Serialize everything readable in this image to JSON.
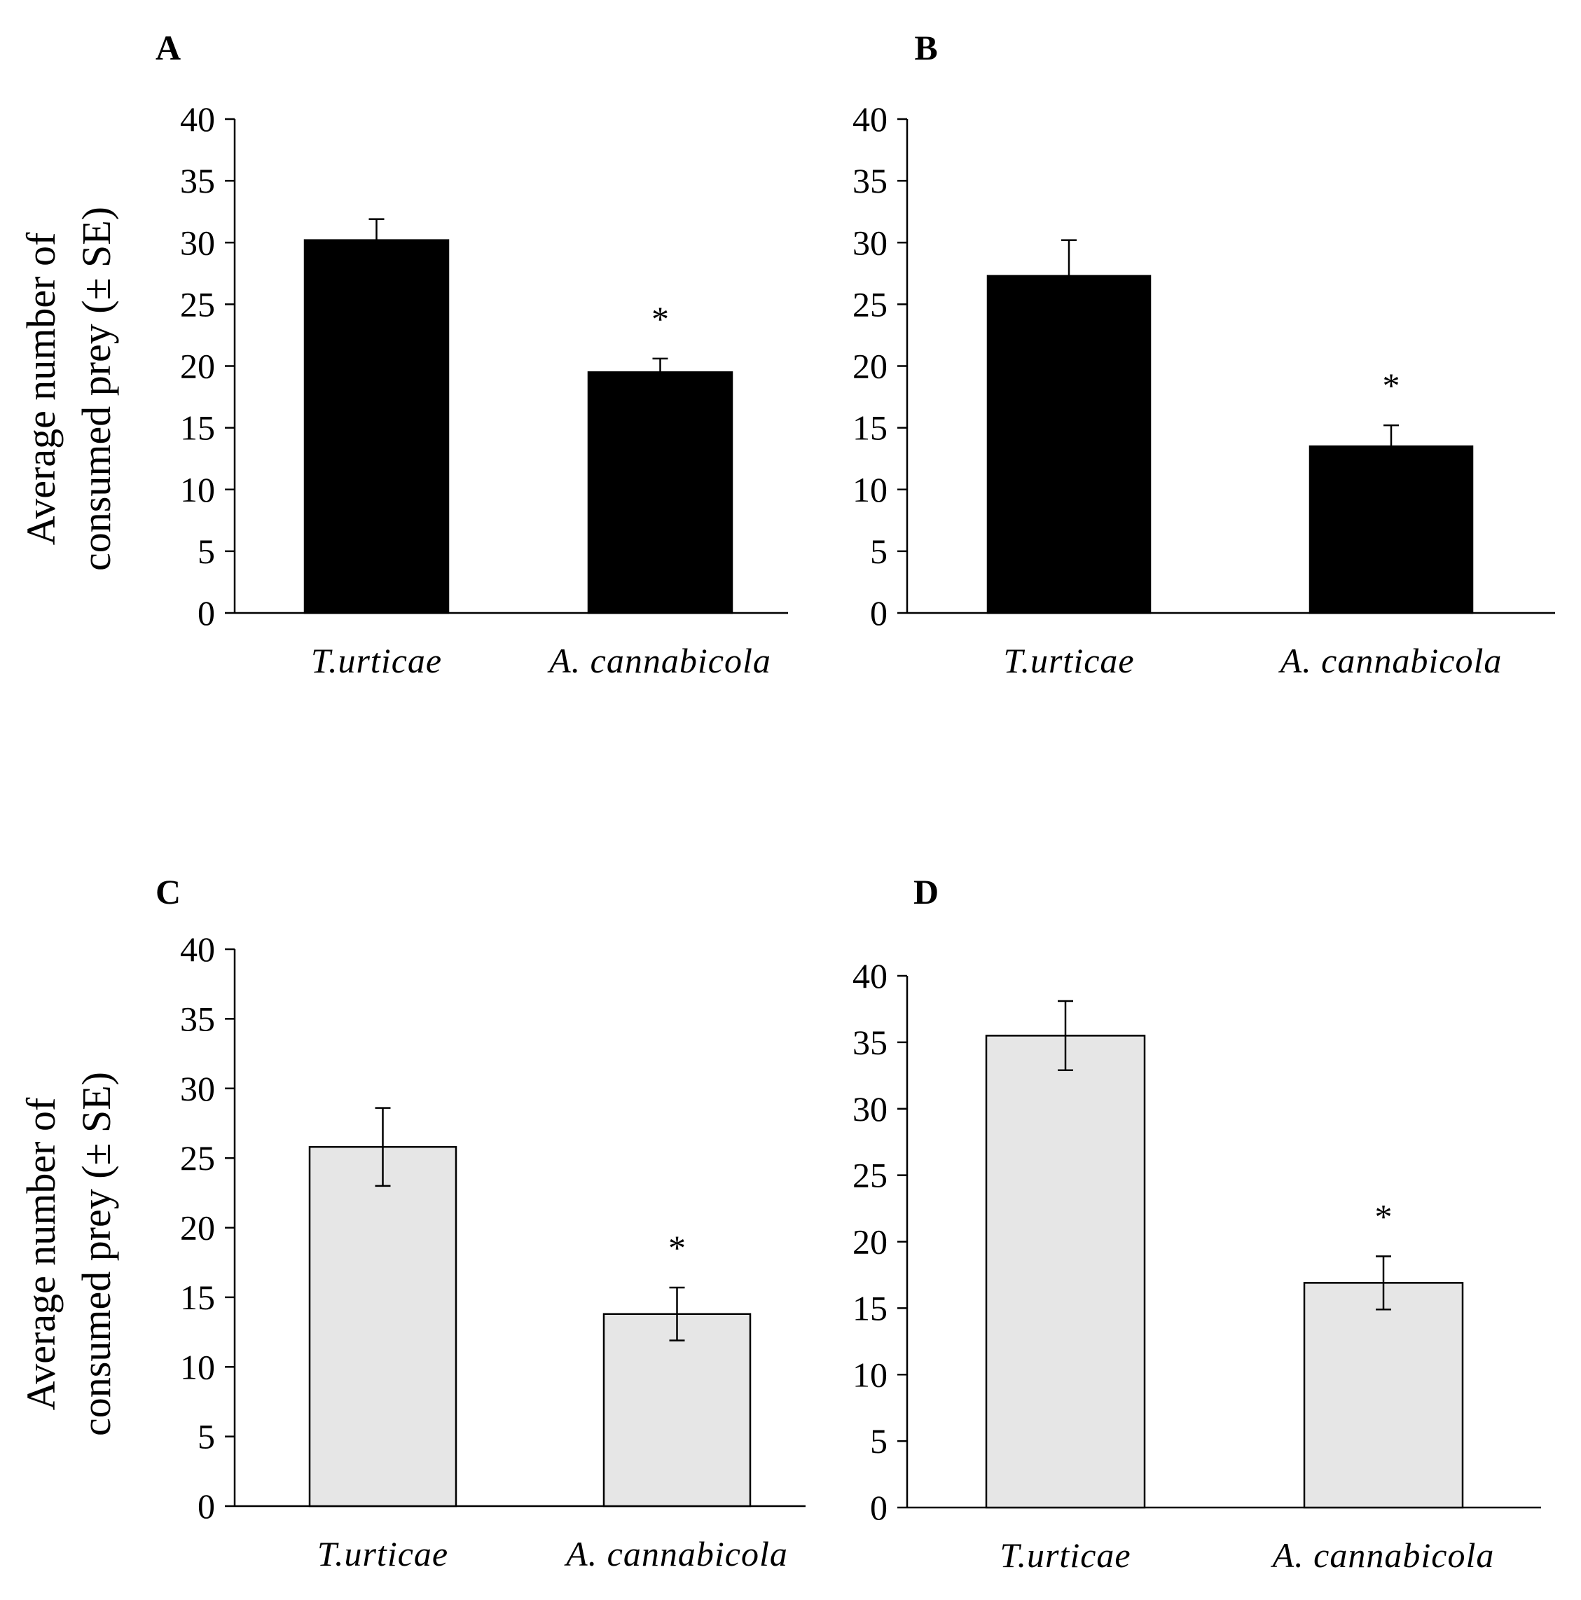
{
  "figure": {
    "y_axis_label_line1": "Average number of",
    "y_axis_label_line2": "consumed prey (± SE)"
  },
  "colors": {
    "dark_bar": "#000000",
    "light_bar": "#e6e6e6",
    "bar_edge": "#000000",
    "axis": "#000000"
  },
  "chart_data": [
    {
      "panel": "A",
      "type": "bar",
      "categories": [
        "T.urticae",
        "A. cannabicola"
      ],
      "values": [
        30.2,
        19.5
      ],
      "errors": [
        1.7,
        1.1
      ],
      "significance": [
        "",
        "*"
      ],
      "ylim": [
        0,
        40
      ],
      "yticks": [
        0,
        5,
        10,
        15,
        20,
        25,
        30,
        35,
        40
      ],
      "bar_color": "dark",
      "ylabel": "Average number of consumed prey (± SE)"
    },
    {
      "panel": "B",
      "type": "bar",
      "categories": [
        "T.urticae",
        "A. cannabicola"
      ],
      "values": [
        27.3,
        13.5
      ],
      "errors": [
        2.9,
        1.7
      ],
      "significance": [
        "",
        "*"
      ],
      "ylim": [
        0,
        40
      ],
      "yticks": [
        0,
        5,
        10,
        15,
        20,
        25,
        30,
        35,
        40
      ],
      "bar_color": "dark",
      "ylabel": ""
    },
    {
      "panel": "C",
      "type": "bar",
      "categories": [
        "T.urticae",
        "A. cannabicola"
      ],
      "values": [
        25.8,
        13.8
      ],
      "errors": [
        2.8,
        1.9
      ],
      "significance": [
        "",
        "*"
      ],
      "ylim": [
        0,
        40
      ],
      "yticks": [
        0,
        5,
        10,
        15,
        20,
        25,
        30,
        35,
        40
      ],
      "bar_color": "light",
      "ylabel": "Average number of consumed prey (± SE)"
    },
    {
      "panel": "D",
      "type": "bar",
      "categories": [
        "T.urticae",
        "A. cannabicola"
      ],
      "values": [
        35.5,
        16.9
      ],
      "errors": [
        2.6,
        2.0
      ],
      "significance": [
        "",
        "*"
      ],
      "ylim": [
        0,
        40
      ],
      "yticks": [
        0,
        5,
        10,
        15,
        20,
        25,
        30,
        35,
        40
      ],
      "bar_color": "light",
      "ylabel": ""
    }
  ]
}
